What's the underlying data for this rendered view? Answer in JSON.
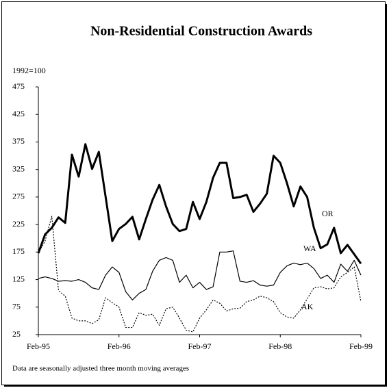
{
  "chart_data": {
    "type": "line",
    "title": "Non-Residential Construction Awards",
    "y_label": "1992=100",
    "footnote": "Data are seasonally adjusted three month moving averages",
    "categories": [
      "Feb-95",
      null,
      null,
      null,
      null,
      null,
      null,
      null,
      null,
      null,
      null,
      null,
      "Feb-96",
      null,
      null,
      null,
      null,
      null,
      null,
      null,
      null,
      null,
      null,
      null,
      "Feb-97",
      null,
      null,
      null,
      null,
      null,
      null,
      null,
      null,
      null,
      null,
      null,
      "Feb-98",
      null,
      null,
      null,
      null,
      null,
      null,
      null,
      null,
      null,
      null,
      null,
      "Feb-99"
    ],
    "ylim": [
      25,
      475
    ],
    "yticks": [
      25,
      75,
      125,
      175,
      225,
      275,
      325,
      375,
      425,
      475
    ],
    "grid": false,
    "series": [
      {
        "name": "OR",
        "color": "#000000",
        "width": 3,
        "dash": false,
        "values": [
          173,
          207,
          219,
          238,
          228,
          352,
          312,
          371,
          326,
          357,
          276,
          195,
          217,
          226,
          239,
          198,
          235,
          270,
          297,
          258,
          226,
          213,
          217,
          266,
          235,
          266,
          310,
          337,
          337,
          273,
          275,
          279,
          248,
          263,
          281,
          350,
          337,
          300,
          258,
          294,
          275,
          219,
          182,
          189,
          219,
          173,
          188,
          171,
          154
        ]
      },
      {
        "name": "WA",
        "color": "#000000",
        "width": 1.2,
        "dash": false,
        "values": [
          127,
          130,
          127,
          122,
          123,
          122,
          125,
          120,
          110,
          107,
          133,
          148,
          138,
          103,
          88,
          100,
          107,
          140,
          160,
          165,
          160,
          120,
          133,
          110,
          120,
          107,
          112,
          175,
          175,
          177,
          122,
          120,
          123,
          115,
          113,
          115,
          138,
          150,
          155,
          152,
          155,
          145,
          127,
          133,
          120,
          153,
          140,
          160,
          133
        ]
      },
      {
        "name": "AK",
        "color": "#000000",
        "width": 1.2,
        "dash": true,
        "values": [
          173,
          195,
          240,
          105,
          95,
          55,
          50,
          50,
          45,
          52,
          92,
          83,
          75,
          38,
          38,
          65,
          60,
          62,
          42,
          72,
          75,
          55,
          33,
          30,
          55,
          70,
          88,
          82,
          68,
          72,
          73,
          85,
          88,
          95,
          92,
          85,
          65,
          57,
          55,
          70,
          90,
          110,
          112,
          108,
          110,
          130,
          138,
          148,
          85
        ]
      }
    ]
  }
}
